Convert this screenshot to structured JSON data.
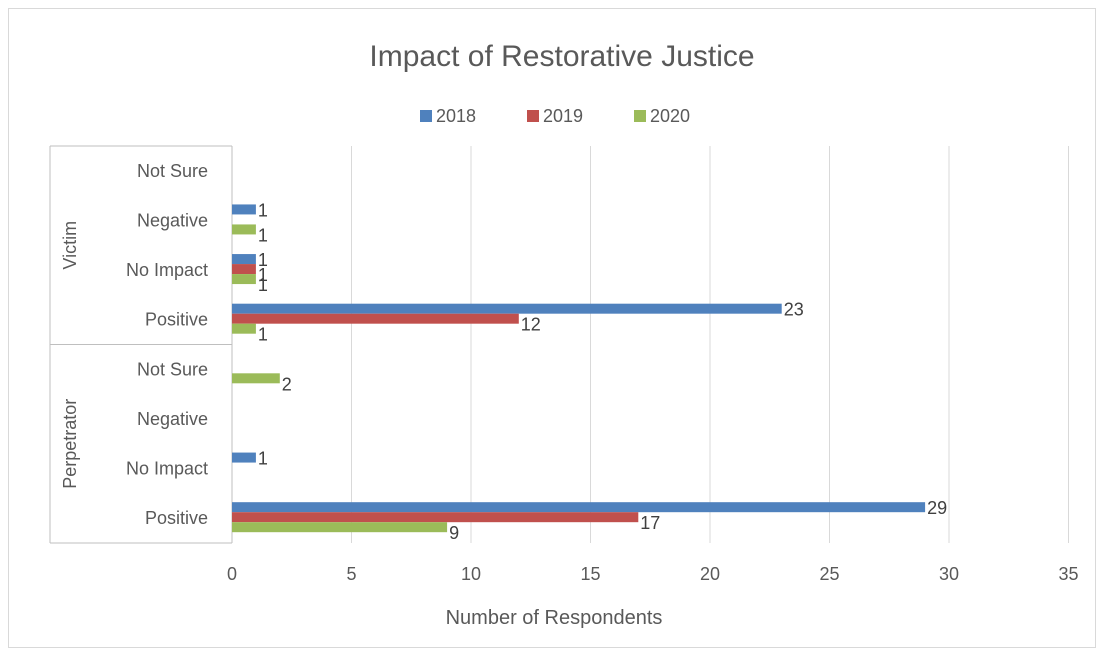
{
  "chart_data": {
    "type": "bar",
    "orientation": "horizontal",
    "title": "Impact of Restorative Justice",
    "xlabel": "Number of Respondents",
    "ylabel": "",
    "xlim": [
      0,
      35
    ],
    "xticks": [
      0,
      5,
      10,
      15,
      20,
      25,
      30,
      35
    ],
    "grid": true,
    "legend_position": "top",
    "groups": [
      {
        "name": "Perpetrator",
        "categories": [
          "Positive",
          "No Impact",
          "Negative",
          "Not Sure"
        ],
        "series": [
          {
            "name": "2018",
            "values": [
              29,
              1,
              null,
              null
            ]
          },
          {
            "name": "2019",
            "values": [
              17,
              null,
              null,
              null
            ]
          },
          {
            "name": "2020",
            "values": [
              9,
              null,
              null,
              2
            ]
          }
        ]
      },
      {
        "name": "Victim",
        "categories": [
          "Positive",
          "No Impact",
          "Negative",
          "Not Sure"
        ],
        "series": [
          {
            "name": "2018",
            "values": [
              23,
              1,
              1,
              null
            ]
          },
          {
            "name": "2019",
            "values": [
              12,
              1,
              null,
              null
            ]
          },
          {
            "name": "2020",
            "values": [
              1,
              1,
              1,
              null
            ]
          }
        ]
      }
    ],
    "series_names": [
      "2018",
      "2019",
      "2020"
    ],
    "colors": {
      "2018": "#4f81bd",
      "2019": "#c0504d",
      "2020": "#9bbb59"
    }
  }
}
